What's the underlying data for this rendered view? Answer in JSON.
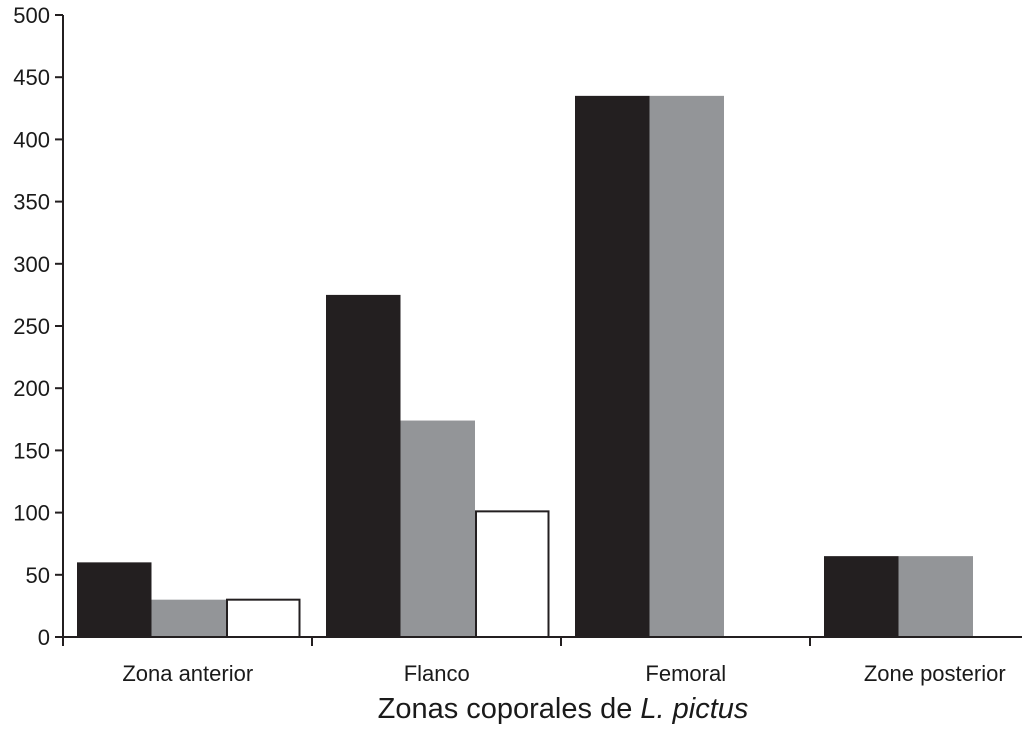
{
  "chart_data": {
    "type": "bar",
    "title": "",
    "xlabel": {
      "main": "Zonas coporales de ",
      "italic": "L. pictus"
    },
    "ylabel": "",
    "ylim": [
      0,
      500
    ],
    "yticks": [
      0,
      50,
      100,
      150,
      200,
      250,
      300,
      350,
      400,
      450,
      500
    ],
    "ytick_labels": [
      "0",
      "50",
      "100",
      "150",
      "200",
      "250",
      "300",
      "350",
      "400",
      "450",
      "500"
    ],
    "grid": false,
    "categories": [
      "Zona anterior",
      "Flanco",
      "Femoral",
      "Zone posterior"
    ],
    "series": [
      {
        "fill": "#231f20",
        "stroke": "#231f20",
        "values": [
          60,
          275,
          435,
          65
        ]
      },
      {
        "fill": "#939598",
        "stroke": "#939598",
        "values": [
          30,
          174,
          435,
          65
        ]
      },
      {
        "fill": "#ffffff",
        "stroke": "#231f20",
        "values": [
          30,
          101,
          null,
          null
        ]
      }
    ]
  }
}
